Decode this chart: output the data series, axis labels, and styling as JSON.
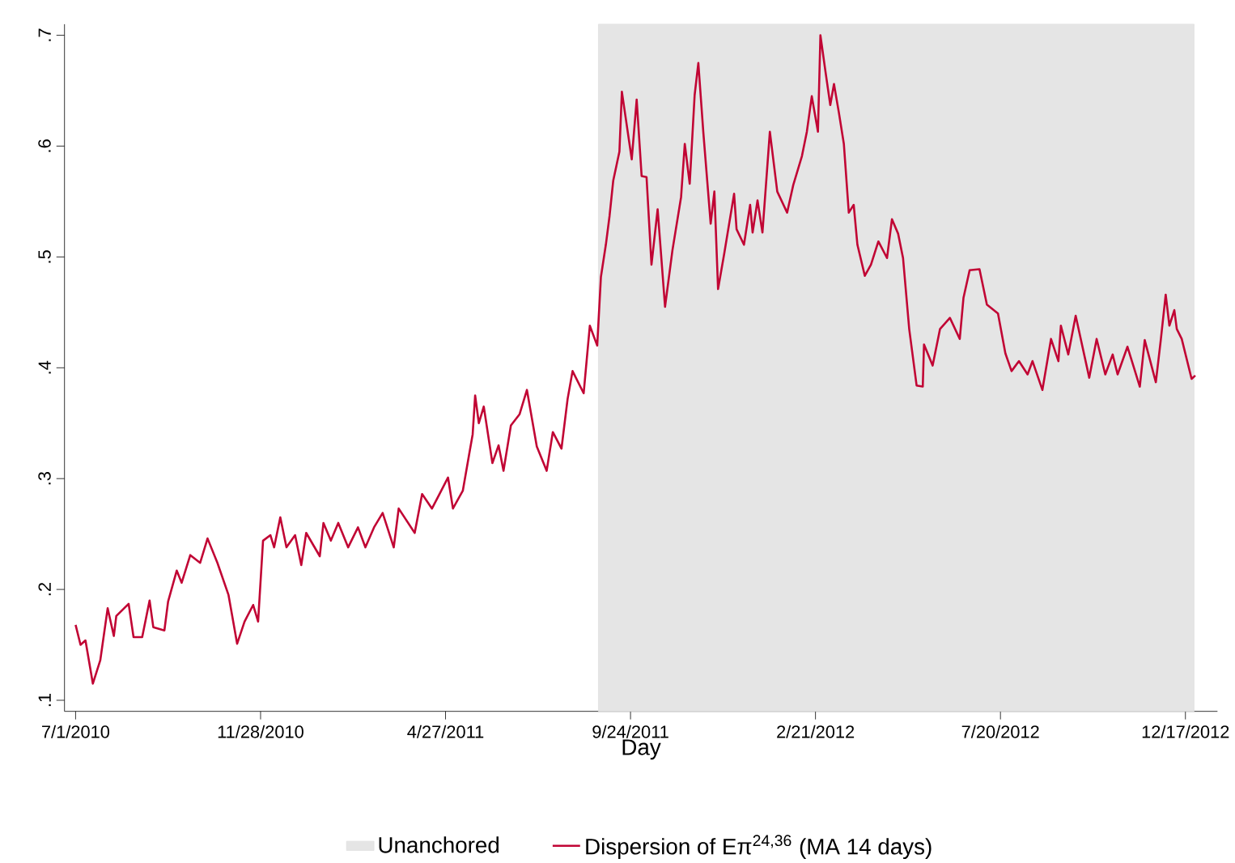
{
  "chart_data": {
    "type": "line",
    "xlabel": "Day",
    "xlim": [
      "2010-06-22",
      "2013-01-12"
    ],
    "xticks": [
      {
        "value": "2010-07-01",
        "label": "7/1/2010"
      },
      {
        "value": "2010-11-28",
        "label": "11/28/2010"
      },
      {
        "value": "2011-04-27",
        "label": "4/27/2011"
      },
      {
        "value": "2011-09-24",
        "label": "9/24/2011"
      },
      {
        "value": "2012-02-21",
        "label": "2/21/2012"
      },
      {
        "value": "2012-07-20",
        "label": "7/20/2012"
      },
      {
        "value": "2012-12-17",
        "label": "12/17/2012"
      }
    ],
    "ylim": [
      0.09,
      0.71
    ],
    "yticks": [
      {
        "value": 0.1,
        "label": ".1"
      },
      {
        "value": 0.2,
        "label": ".2"
      },
      {
        "value": 0.3,
        "label": ".3"
      },
      {
        "value": 0.4,
        "label": ".4"
      },
      {
        "value": 0.5,
        "label": ".5"
      },
      {
        "value": 0.6,
        "label": ".6"
      },
      {
        "value": 0.7,
        "label": ".7"
      }
    ],
    "bands": [
      {
        "axis": "x",
        "from": "2011-08-29",
        "to": "2012-12-24",
        "label": "Unanchored",
        "color": "#e5e5e5"
      }
    ],
    "legend": "bottom",
    "grid": false,
    "series": [
      {
        "name": "Dispersion of Eπ$^{24,36}$ (MA 14 days)",
        "color": "#c10534",
        "x": [
          "2010-07-01",
          "2010-07-05",
          "2010-07-09",
          "2010-07-15",
          "2010-07-21",
          "2010-07-27",
          "2010-08-01",
          "2010-08-03",
          "2010-08-13",
          "2010-08-17",
          "2010-08-24",
          "2010-08-30",
          "2010-09-02",
          "2010-09-11",
          "2010-09-14",
          "2010-09-21",
          "2010-09-25",
          "2010-10-02",
          "2010-10-10",
          "2010-10-16",
          "2010-10-24",
          "2010-11-02",
          "2010-11-09",
          "2010-11-15",
          "2010-11-22",
          "2010-11-26",
          "2010-11-30",
          "2010-12-06",
          "2010-12-09",
          "2010-12-14",
          "2010-12-19",
          "2010-12-26",
          "2010-12-31",
          "2011-01-04",
          "2011-01-15",
          "2011-01-18",
          "2011-01-24",
          "2011-01-30",
          "2011-02-07",
          "2011-02-15",
          "2011-02-21",
          "2011-02-28",
          "2011-03-07",
          "2011-03-16",
          "2011-03-20",
          "2011-04-02",
          "2011-04-08",
          "2011-04-16",
          "2011-04-23",
          "2011-04-29",
          "2011-05-03",
          "2011-05-11",
          "2011-05-16",
          "2011-05-19",
          "2011-05-21",
          "2011-05-24",
          "2011-05-28",
          "2011-06-04",
          "2011-06-09",
          "2011-06-13",
          "2011-06-19",
          "2011-06-26",
          "2011-07-02",
          "2011-07-10",
          "2011-07-18",
          "2011-07-23",
          "2011-07-30",
          "2011-08-04",
          "2011-08-08",
          "2011-08-17",
          "2011-08-22",
          "2011-08-28",
          "2011-08-31",
          "2011-09-04",
          "2011-09-07",
          "2011-09-10",
          "2011-09-15",
          "2011-09-17",
          "2011-09-25",
          "2011-09-29",
          "2011-10-03",
          "2011-10-07",
          "2011-10-11",
          "2011-10-16",
          "2011-10-22",
          "2011-10-28",
          "2011-11-04",
          "2011-11-07",
          "2011-11-11",
          "2011-11-15",
          "2011-11-18",
          "2011-11-22",
          "2011-11-28",
          "2011-12-01",
          "2011-12-04",
          "2011-12-09",
          "2011-12-17",
          "2011-12-19",
          "2011-12-25",
          "2011-12-30",
          "2012-01-01",
          "2012-01-05",
          "2012-01-09",
          "2012-01-15",
          "2012-01-21",
          "2012-01-29",
          "2012-02-03",
          "2012-02-10",
          "2012-02-14",
          "2012-02-18",
          "2012-02-23",
          "2012-02-25",
          "2012-02-29",
          "2012-03-04",
          "2012-03-07",
          "2012-03-11",
          "2012-03-15",
          "2012-03-19",
          "2012-03-23",
          "2012-03-26",
          "2012-04-01",
          "2012-04-06",
          "2012-04-12",
          "2012-04-19",
          "2012-04-23",
          "2012-04-28",
          "2012-05-02",
          "2012-05-07",
          "2012-05-13",
          "2012-05-18",
          "2012-05-19",
          "2012-05-26",
          "2012-06-01",
          "2012-06-09",
          "2012-06-17",
          "2012-06-20",
          "2012-06-25",
          "2012-07-03",
          "2012-07-09",
          "2012-07-18",
          "2012-07-24",
          "2012-07-29",
          "2012-08-04",
          "2012-08-11",
          "2012-08-15",
          "2012-08-23",
          "2012-08-30",
          "2012-09-05",
          "2012-09-07",
          "2012-09-13",
          "2012-09-19",
          "2012-09-30",
          "2012-10-06",
          "2012-10-13",
          "2012-10-19",
          "2012-10-23",
          "2012-10-31",
          "2012-11-10",
          "2012-11-14",
          "2012-11-23",
          "2012-11-27",
          "2012-12-01",
          "2012-12-04",
          "2012-12-08",
          "2012-12-10",
          "2012-12-14",
          "2012-12-22",
          "2012-12-25"
        ],
        "values": [
          0.168,
          0.15,
          0.154,
          0.115,
          0.136,
          0.183,
          0.158,
          0.176,
          0.187,
          0.157,
          0.157,
          0.19,
          0.166,
          0.163,
          0.189,
          0.217,
          0.206,
          0.231,
          0.224,
          0.246,
          0.224,
          0.195,
          0.151,
          0.171,
          0.186,
          0.171,
          0.244,
          0.249,
          0.238,
          0.265,
          0.238,
          0.249,
          0.222,
          0.251,
          0.23,
          0.26,
          0.244,
          0.26,
          0.238,
          0.256,
          0.238,
          0.256,
          0.269,
          0.238,
          0.273,
          0.251,
          0.286,
          0.273,
          0.288,
          0.301,
          0.273,
          0.289,
          0.321,
          0.34,
          0.375,
          0.35,
          0.365,
          0.314,
          0.33,
          0.307,
          0.348,
          0.358,
          0.38,
          0.329,
          0.307,
          0.342,
          0.327,
          0.372,
          0.397,
          0.377,
          0.438,
          0.42,
          0.482,
          0.511,
          0.537,
          0.569,
          0.595,
          0.649,
          0.588,
          0.642,
          0.573,
          0.572,
          0.493,
          0.543,
          0.455,
          0.506,
          0.554,
          0.602,
          0.566,
          0.646,
          0.675,
          0.613,
          0.53,
          0.559,
          0.471,
          0.503,
          0.557,
          0.525,
          0.511,
          0.547,
          0.522,
          0.551,
          0.522,
          0.613,
          0.559,
          0.54,
          0.565,
          0.591,
          0.613,
          0.645,
          0.613,
          0.7,
          0.668,
          0.637,
          0.656,
          0.63,
          0.602,
          0.54,
          0.547,
          0.511,
          0.483,
          0.493,
          0.514,
          0.499,
          0.534,
          0.521,
          0.499,
          0.435,
          0.384,
          0.383,
          0.421,
          0.402,
          0.435,
          0.445,
          0.426,
          0.463,
          0.488,
          0.489,
          0.457,
          0.449,
          0.413,
          0.397,
          0.406,
          0.394,
          0.406,
          0.38,
          0.426,
          0.406,
          0.438,
          0.412,
          0.447,
          0.391,
          0.426,
          0.394,
          0.412,
          0.394,
          0.419,
          0.383,
          0.425,
          0.387,
          0.425,
          0.466,
          0.438,
          0.452,
          0.435,
          0.426,
          0.39,
          0.393
        ]
      }
    ]
  }
}
